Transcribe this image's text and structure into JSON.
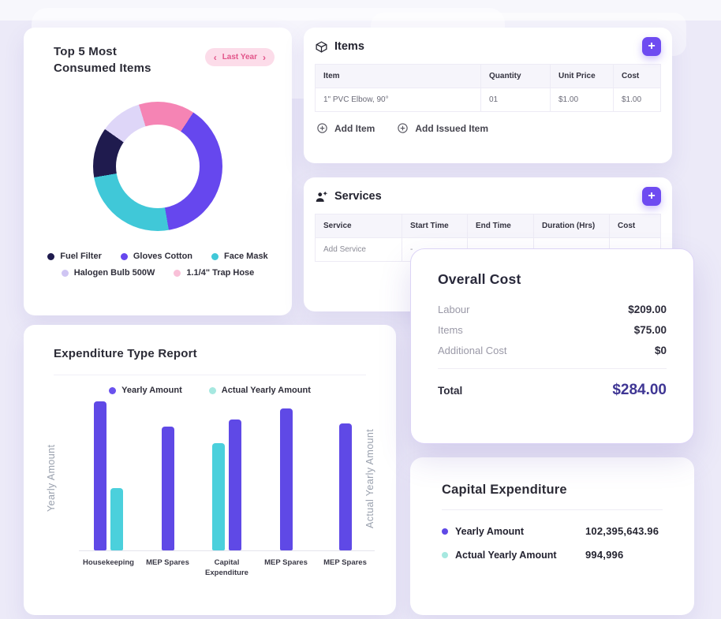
{
  "page": {
    "background": "#eceaf8",
    "accent": "#6e4bf1"
  },
  "consumed_card": {
    "title_line1": "Top 5 Most",
    "title_line2": "Consumed Items",
    "pill": {
      "prev": "‹",
      "label": "Last Year",
      "next": "›"
    },
    "chart_data": {
      "type": "pie",
      "subtype": "donut",
      "title": "Top 5 Most Consumed Items",
      "period": "Last Year",
      "start_angle_deg": -17,
      "segments": [
        {
          "label": "1.1/4\" Trap Hose",
          "pct": 14,
          "color": "#f584b4"
        },
        {
          "label": "Gloves Cotton",
          "pct": 38,
          "color": "#6647ee"
        },
        {
          "label": "Face Mask",
          "pct": 25,
          "color": "#40c8d8"
        },
        {
          "label": "Fuel Filter",
          "pct": 12.5,
          "color": "#1f1b4e"
        },
        {
          "label": "Halogen Bulb 500W",
          "pct": 10.5,
          "color": "#ded6f8"
        }
      ]
    },
    "legend": [
      {
        "label": "Fuel Filter",
        "color": "#1f1b4e"
      },
      {
        "label": "Gloves Cotton",
        "color": "#6647ee"
      },
      {
        "label": "Face Mask",
        "color": "#40c8d8"
      },
      {
        "label": "Halogen Bulb 500W",
        "color": "#cfc5f3"
      },
      {
        "label": "1.1/4\" Trap Hose",
        "color": "#f9c0d8"
      }
    ]
  },
  "items_card": {
    "title": "Items",
    "add_button_label": "+",
    "table": {
      "headers": [
        "Item",
        "Quantity",
        "Unit Price",
        "Cost"
      ],
      "rows": [
        [
          "1\" PVC Elbow, 90°",
          "01",
          "$1.00",
          "$1.00"
        ]
      ]
    },
    "actions": [
      {
        "label": "Add Item"
      },
      {
        "label": "Add Issued Item"
      }
    ]
  },
  "services_card": {
    "title": "Services",
    "add_button_label": "+",
    "table": {
      "headers": [
        "Service",
        "Start Time",
        "End Time",
        "Duration (Hrs)",
        "Cost"
      ],
      "rows": [
        [
          "Add Service",
          "-",
          "",
          "",
          ""
        ]
      ]
    }
  },
  "overall_cost_card": {
    "title": "Overall Cost",
    "rows": [
      {
        "label": "Labour",
        "value": "$209.00"
      },
      {
        "label": "Items",
        "value": "$75.00"
      },
      {
        "label": "Additional Cost",
        "value": "$0"
      }
    ],
    "total": {
      "label": "Total",
      "value": "$284.00",
      "value_color": "#3f3694"
    }
  },
  "expenditure_card": {
    "title": "Expenditure Type Report",
    "axis_left": "Yearly Amount",
    "axis_right": "Actual Yearly Amount",
    "chart_data": {
      "type": "bar",
      "title": "Expenditure Type Report",
      "categories": [
        "Housekeeping",
        "MEP Spares",
        "Capital Expenditure",
        "MEP Spares",
        "MEP Spares"
      ],
      "series": [
        {
          "name": "Yearly Amount",
          "color": "#5f49e6",
          "values": [
            100,
            83,
            88,
            95,
            85
          ]
        },
        {
          "name": "Actual Yearly Amount",
          "color": "#4bd0dc",
          "values": [
            42,
            null,
            72,
            null,
            null
          ]
        }
      ],
      "ylim": [
        0,
        100
      ],
      "value_scale": "relative bar height percent; no numeric axis ticks shown",
      "grid": false,
      "legend_position": "top",
      "groups": [
        {
          "category": "Housekeeping",
          "bars": [
            {
              "series": "Yearly Amount",
              "value": 100
            },
            {
              "series": "Actual Yearly Amount",
              "value": 42
            }
          ]
        },
        {
          "category": "MEP Spares",
          "bars": [
            {
              "series": "Yearly Amount",
              "value": 83
            }
          ]
        },
        {
          "category": "Capital Expenditure",
          "bars": [
            {
              "series": "Actual Yearly Amount",
              "value": 72
            },
            {
              "series": "Yearly Amount",
              "value": 88
            }
          ]
        },
        {
          "category": "MEP Spares",
          "bars": [
            {
              "series": "Yearly Amount",
              "value": 95
            }
          ]
        },
        {
          "category": "MEP Spares",
          "bars": [
            {
              "series": "Yearly Amount",
              "value": 85
            }
          ]
        }
      ],
      "legend": [
        {
          "label": "Yearly Amount",
          "color": "#6a52ee"
        },
        {
          "label": "Actual Yearly Amount",
          "color": "#a6e8e0"
        }
      ]
    }
  },
  "capital_card": {
    "title": "Capital Expenditure",
    "rows": [
      {
        "label": "Yearly Amount",
        "color": "#5f49e6",
        "value": "102,395,643.96"
      },
      {
        "label": "Actual Yearly Amount",
        "color": "#a6e8e0",
        "value": "994,996"
      }
    ]
  }
}
